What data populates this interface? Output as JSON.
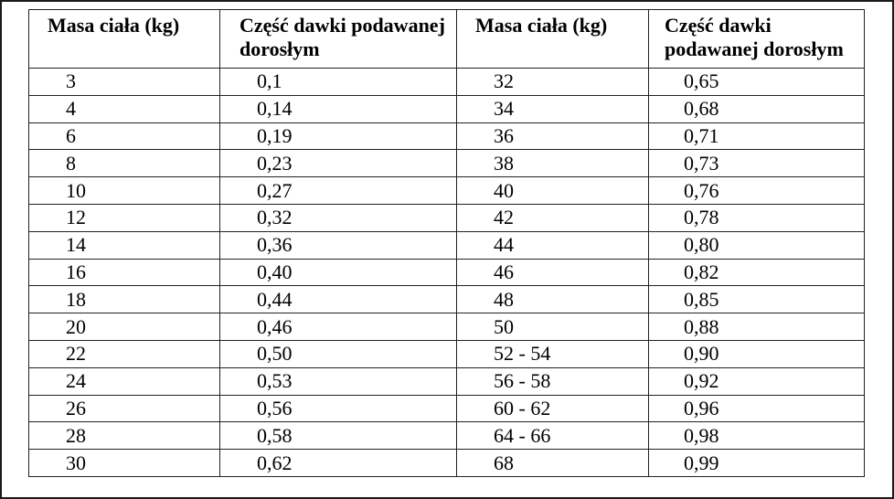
{
  "headers": [
    "Masa ciała (kg)",
    "Część dawki podawanej dorosłym",
    "Masa ciała (kg)",
    "Część dawki podawanej dorosłym"
  ],
  "rows": [
    [
      "3",
      "0,1",
      "32",
      "0,65"
    ],
    [
      "4",
      "0,14",
      "34",
      "0,68"
    ],
    [
      "6",
      "0,19",
      "36",
      "0,71"
    ],
    [
      "8",
      "0,23",
      "38",
      "0,73"
    ],
    [
      "10",
      "0,27",
      "40",
      "0,76"
    ],
    [
      "12",
      "0,32",
      "42",
      "0,78"
    ],
    [
      "14",
      "0,36",
      "44",
      "0,80"
    ],
    [
      "16",
      "0,40",
      "46",
      "0,82"
    ],
    [
      "18",
      "0,44",
      "48",
      "0,85"
    ],
    [
      "20",
      "0,46",
      "50",
      "0,88"
    ],
    [
      "22",
      "0,50",
      "52 - 54",
      "0,90"
    ],
    [
      "24",
      "0,53",
      "56 - 58",
      "0,92"
    ],
    [
      "26",
      "0,56",
      "60 - 62",
      "0,96"
    ],
    [
      "28",
      "0,58",
      "64 - 66",
      "0,98"
    ],
    [
      "30",
      "0,62",
      "68",
      "0,99"
    ]
  ]
}
